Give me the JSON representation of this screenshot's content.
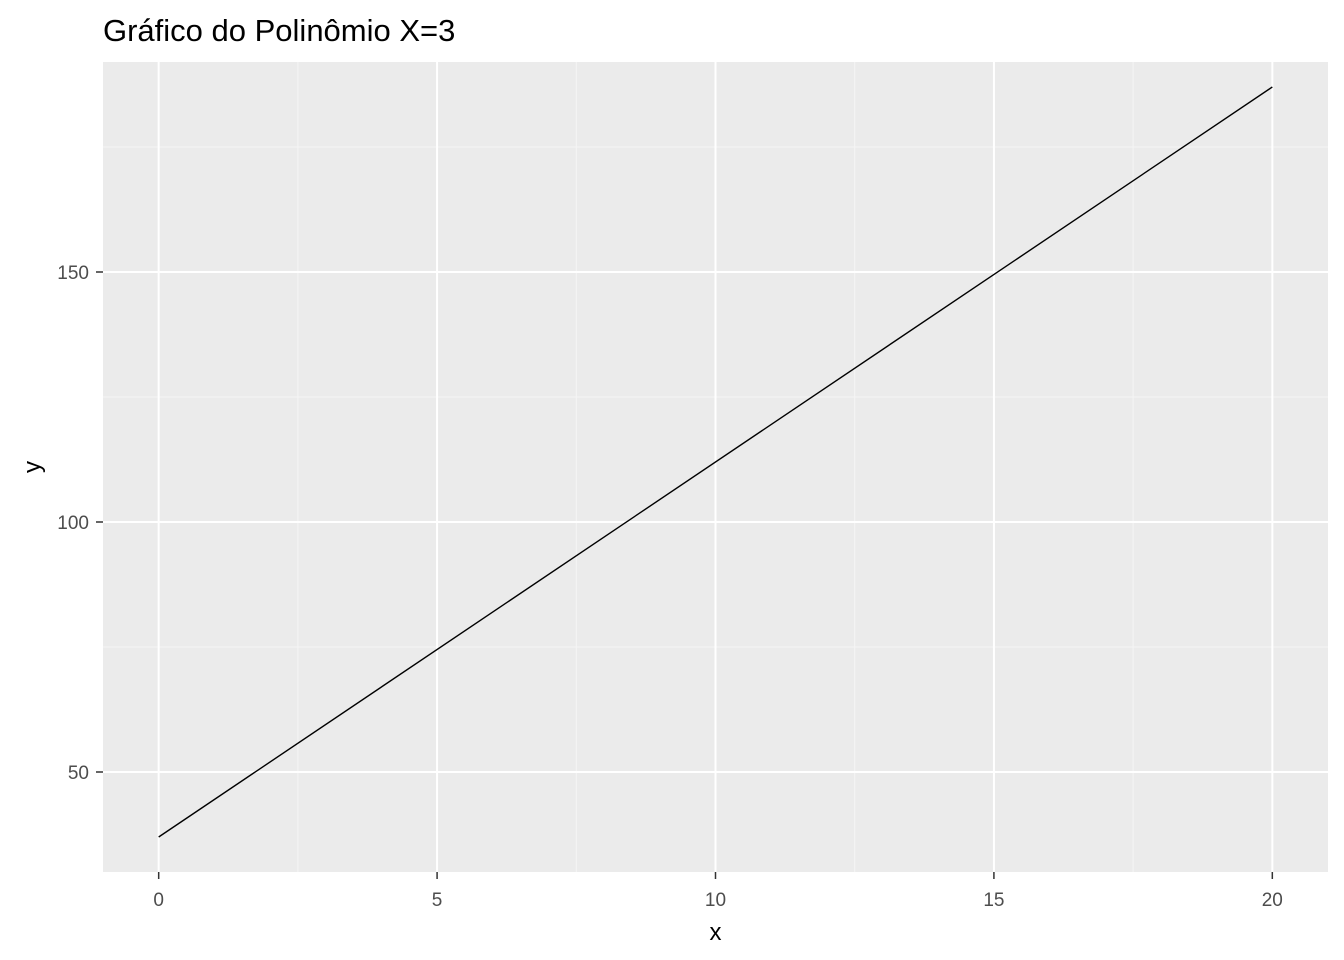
{
  "colors": {
    "panel_background": "#EBEBEB",
    "grid_major": "#FFFFFF",
    "grid_minor": "#F5F5F5",
    "line": "#000000",
    "tick_text": "#4D4D4D",
    "tick_mark": "#333333"
  },
  "chart_data": {
    "type": "line",
    "title": "Gráfico do Polinômio X=3",
    "xlabel": "x",
    "ylabel": "y",
    "xlim": [
      -1,
      21
    ],
    "ylim": [
      30,
      192
    ],
    "x_ticks": [
      0,
      5,
      10,
      15,
      20
    ],
    "x_tick_labels": [
      "0",
      "5",
      "10",
      "15",
      "20"
    ],
    "x_minor_ticks": [
      2.5,
      7.5,
      12.5,
      17.5
    ],
    "y_ticks": [
      50,
      100,
      150
    ],
    "y_tick_labels": [
      "50",
      "100",
      "150"
    ],
    "y_minor_ticks": [
      75,
      125,
      175
    ],
    "grid": true,
    "legend": "none",
    "series": [
      {
        "x": [
          0,
          20
        ],
        "y": [
          37,
          187
        ]
      }
    ]
  }
}
